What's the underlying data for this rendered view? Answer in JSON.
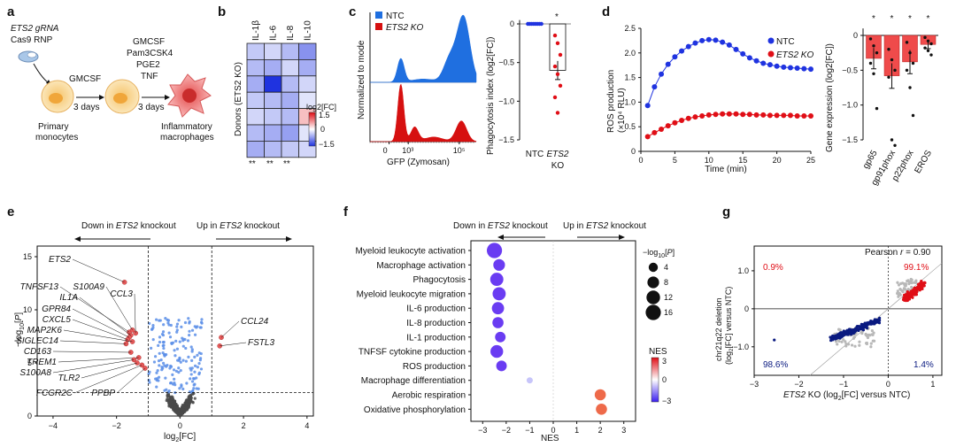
{
  "colors": {
    "blue": "#1f33e0",
    "red": "#e00e16",
    "gray": "#8a8a8a",
    "navy": "#0a1a80",
    "lilac": "#c7c5fa",
    "purple": "#5a2ff0"
  },
  "panels": {
    "a": {
      "label": "a",
      "input": "ETS2 gRNA",
      "input2": "Cas9 RNP",
      "step1": "GMCSF",
      "step1_time": "3 days",
      "step2": [
        "GMCSF",
        "Pam3CSK4",
        "PGE2",
        "TNF"
      ],
      "step2_time": "3 days",
      "cell1": [
        "Primary",
        "monocytes"
      ],
      "cell3": [
        "Inflammatory",
        "macrophages"
      ]
    },
    "b": {
      "label": "b",
      "ylabel": "Donors (ETS2 KO)",
      "legend_title": "log2[FC]",
      "sig": "**"
    },
    "c": {
      "label": "c",
      "hist_ylabel": "Normalized to mode",
      "hist_xlabel": "GFP (Zymosan)",
      "legend": [
        "NTC",
        "ETS2 KO"
      ],
      "dot_ylabel": "Phagocytosis index (log2[FC])",
      "star": "*"
    },
    "d": {
      "label": "d",
      "legend": [
        "NTC",
        "ETS2 KO"
      ],
      "bar_ylabel": "Gene expression (log2[FC])",
      "star": "*"
    },
    "e": {
      "label": "e",
      "down_label": "Down in ETS2 knockout",
      "up_label": "Up in ETS2 knockout"
    },
    "f": {
      "label": "f",
      "down_label": "Down in ETS2 knockout",
      "up_label": "Up in ETS2 knockout",
      "size_title": "−log10[P]",
      "color_title": "NES"
    },
    "g": {
      "label": "g",
      "pearson": "Pearson r = 0.90",
      "quadrants": {
        "tl": "0.9%",
        "tr": "99.1%",
        "bl": "98.6%",
        "br": "1.4%"
      }
    }
  },
  "chart_data": [
    {
      "type": "heatmap",
      "id": "b",
      "columns": [
        "IL-1β",
        "IL-6",
        "IL-8",
        "IL-10"
      ],
      "rows": 7,
      "values": [
        [
          -0.4,
          -0.3,
          -0.5,
          -0.8
        ],
        [
          -0.5,
          -0.6,
          -0.3,
          -0.6
        ],
        [
          -0.6,
          -1.5,
          -0.5,
          -0.3
        ],
        [
          -0.4,
          -0.5,
          -0.6,
          -0.2
        ],
        [
          -0.3,
          -0.4,
          -0.5,
          0.4
        ],
        [
          -0.5,
          -0.6,
          -0.7,
          -0.2
        ],
        [
          -0.6,
          -0.5,
          -0.4,
          -0.3
        ]
      ],
      "colorbar": {
        "min": -1.5,
        "max": 1.5,
        "ticks": [
          "1.5",
          "0",
          "−1.5"
        ]
      }
    },
    {
      "type": "area",
      "id": "c-hist",
      "xlabel": "GFP (Zymosan)",
      "ylabel": "Normalized to mode",
      "xticks": [
        "0",
        "10³",
        "10⁵"
      ],
      "series": [
        {
          "name": "NTC",
          "color": "#1f6fe0"
        },
        {
          "name": "ETS2 KO",
          "color": "#d61010"
        }
      ]
    },
    {
      "type": "bar",
      "id": "c-dots",
      "categories": [
        "NTC",
        "ETS2 KO"
      ],
      "values": [
        0,
        -0.6
      ],
      "errors": [
        0,
        0.12
      ],
      "points": [
        [
          0,
          0,
          0,
          0,
          0,
          0,
          0,
          0
        ],
        [
          -0.15,
          -0.25,
          -0.4,
          -0.55,
          -0.65,
          -0.8,
          -0.95,
          -1.15
        ]
      ],
      "ylabel": "Phagocytosis index (log2[FC])",
      "ylim": [
        -1.5,
        0
      ],
      "yticks": [
        0,
        -0.5,
        -1.0,
        -1.5
      ]
    },
    {
      "type": "line",
      "id": "d-ros",
      "xlabel": "Time (min)",
      "ylabel": "ROS production (×10⁴ RLU)",
      "xlim": [
        0,
        25
      ],
      "ylim": [
        0,
        2.5
      ],
      "xticks": [
        0,
        5,
        10,
        15,
        20,
        25
      ],
      "yticks": [
        0,
        0.5,
        1.0,
        1.5,
        2.0,
        2.5
      ],
      "x": [
        1,
        2,
        3,
        4,
        5,
        6,
        7,
        8,
        9,
        10,
        11,
        12,
        13,
        14,
        15,
        16,
        17,
        18,
        19,
        20,
        21,
        22,
        23,
        24,
        25
      ],
      "series": [
        {
          "name": "NTC",
          "values": [
            0.93,
            1.31,
            1.57,
            1.77,
            1.92,
            2.04,
            2.13,
            2.2,
            2.25,
            2.27,
            2.26,
            2.22,
            2.16,
            2.07,
            1.98,
            1.9,
            1.84,
            1.79,
            1.76,
            1.73,
            1.71,
            1.7,
            1.69,
            1.68,
            1.67
          ]
        },
        {
          "name": "ETS2 KO",
          "values": [
            0.3,
            0.38,
            0.45,
            0.52,
            0.58,
            0.63,
            0.67,
            0.7,
            0.72,
            0.74,
            0.75,
            0.76,
            0.76,
            0.76,
            0.75,
            0.75,
            0.74,
            0.74,
            0.73,
            0.73,
            0.73,
            0.73,
            0.72,
            0.72,
            0.72
          ]
        }
      ]
    },
    {
      "type": "bar",
      "id": "d-bars",
      "categories": [
        "gp65",
        "gp91phox",
        "p22phox",
        "EROS"
      ],
      "values": [
        -0.33,
        -0.58,
        -0.38,
        -0.13
      ],
      "errors": [
        0.15,
        0.18,
        0.17,
        0.06
      ],
      "points": [
        [
          -0.05,
          -0.15,
          -0.25,
          -0.4,
          -0.55,
          -1.05
        ],
        [
          -0.2,
          -0.35,
          -0.5,
          -0.6,
          -1.5,
          -1.58
        ],
        [
          -0.1,
          -0.25,
          -0.4,
          -0.5,
          -0.75,
          -1.15
        ],
        [
          -0.03,
          -0.08,
          -0.12,
          -0.18,
          -0.22,
          -0.28
        ]
      ],
      "ylabel": "Gene expression (log2[FC])",
      "ylim": [
        -1.5,
        0.1
      ],
      "yticks": [
        0,
        -0.5,
        -1.0,
        -1.5
      ]
    },
    {
      "type": "scatter",
      "id": "e-volcano",
      "xlabel": "log2[FC]",
      "ylabel": "−log10[P]",
      "xlim": [
        -4.5,
        4.2
      ],
      "ylim": [
        0,
        16
      ],
      "xticks": [
        -4,
        -2,
        0,
        2,
        4
      ],
      "yticks": [
        0,
        5,
        10,
        15
      ],
      "thresholds": {
        "fc": 1,
        "p": 2.2
      },
      "labeled_points": [
        {
          "label": "ETS2",
          "x": -1.75,
          "y": 12.6
        },
        {
          "label": "TNFSF13",
          "x": -1.6,
          "y": 7.9
        },
        {
          "label": "S100A9",
          "x": -1.5,
          "y": 8.1
        },
        {
          "label": "CCL3",
          "x": -1.4,
          "y": 7.8
        },
        {
          "label": "IL1A",
          "x": -1.55,
          "y": 7.6
        },
        {
          "label": "GPR84",
          "x": -1.6,
          "y": 7.4
        },
        {
          "label": "CXCL5",
          "x": -1.65,
          "y": 7.2
        },
        {
          "label": "MAP2K6",
          "x": -1.5,
          "y": 7.0
        },
        {
          "label": "SIGLEC14",
          "x": -1.7,
          "y": 6.8
        },
        {
          "label": "CD163",
          "x": -1.55,
          "y": 6.0
        },
        {
          "label": "TREM1",
          "x": -1.3,
          "y": 5.5
        },
        {
          "label": "S100A8",
          "x": -1.45,
          "y": 5.3
        },
        {
          "label": "TLR2",
          "x": -1.35,
          "y": 5.0
        },
        {
          "label": "FCGR2C",
          "x": -1.2,
          "y": 4.8
        },
        {
          "label": "PPBP",
          "x": -1.1,
          "y": 4.5
        },
        {
          "label": "CCL24",
          "x": 1.3,
          "y": 7.4
        },
        {
          "label": "FSTL3",
          "x": 1.25,
          "y": 6.6
        }
      ]
    },
    {
      "type": "scatter",
      "id": "f-enrichment",
      "xlabel": "NES",
      "xlim": [
        -3.5,
        3.5
      ],
      "xticks": [
        -3,
        -2,
        -1,
        0,
        1,
        2,
        3
      ],
      "categories": [
        "Myeloid leukocyte activation",
        "Macrophage activation",
        "Phagocytosis",
        "Myeloid leukocyte migration",
        "IL-6 production",
        "IL-8 production",
        "IL-1 production",
        "TNFSF cytokine production",
        "ROS production",
        "Macrophage differentiation",
        "Aerobic respiration",
        "Oxidative phosphorylation"
      ],
      "nes": [
        -2.5,
        -2.3,
        -2.4,
        -2.3,
        -2.35,
        -2.35,
        -2.25,
        -2.4,
        -2.2,
        -1.0,
        2.0,
        2.05
      ],
      "neglog10p": [
        16,
        8,
        11,
        11,
        9,
        7,
        6,
        10,
        6,
        1,
        7,
        7
      ],
      "size_legend": [
        4,
        8,
        12,
        16
      ],
      "color_ticks": [
        "3",
        "0",
        "−3"
      ]
    },
    {
      "type": "scatter",
      "id": "g-corr",
      "xlabel": "ETS2 KO (log2[FC] versus NTC)",
      "ylabel": "chr21q22 deletion (log2[FC] versus NTC)",
      "xlim": [
        -3,
        1.2
      ],
      "ylim": [
        -1.75,
        1.65
      ],
      "xticks": [
        -3,
        -2,
        -1,
        0,
        1
      ],
      "yticks": [
        1.0,
        0,
        -1.0
      ],
      "pearson_r": 0.9,
      "quadrant_percent": {
        "top_left": 0.9,
        "top_right": 99.1,
        "bottom_left": 98.6,
        "bottom_right": 1.4
      }
    }
  ]
}
